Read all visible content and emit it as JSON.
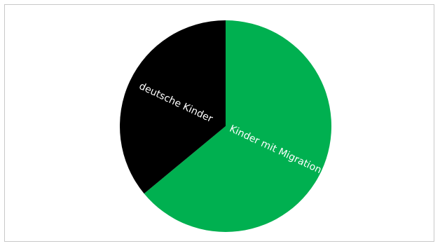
{
  "chart_data": {
    "type": "pie",
    "title": "",
    "start_angle_deg": 0,
    "direction": "clockwise",
    "slices": [
      {
        "label": "Kinder mit Migration",
        "value": 64,
        "color": "#00b050"
      },
      {
        "label": "deutsche Kinder",
        "value": 36,
        "color": "#000000"
      }
    ],
    "legend": "none"
  }
}
